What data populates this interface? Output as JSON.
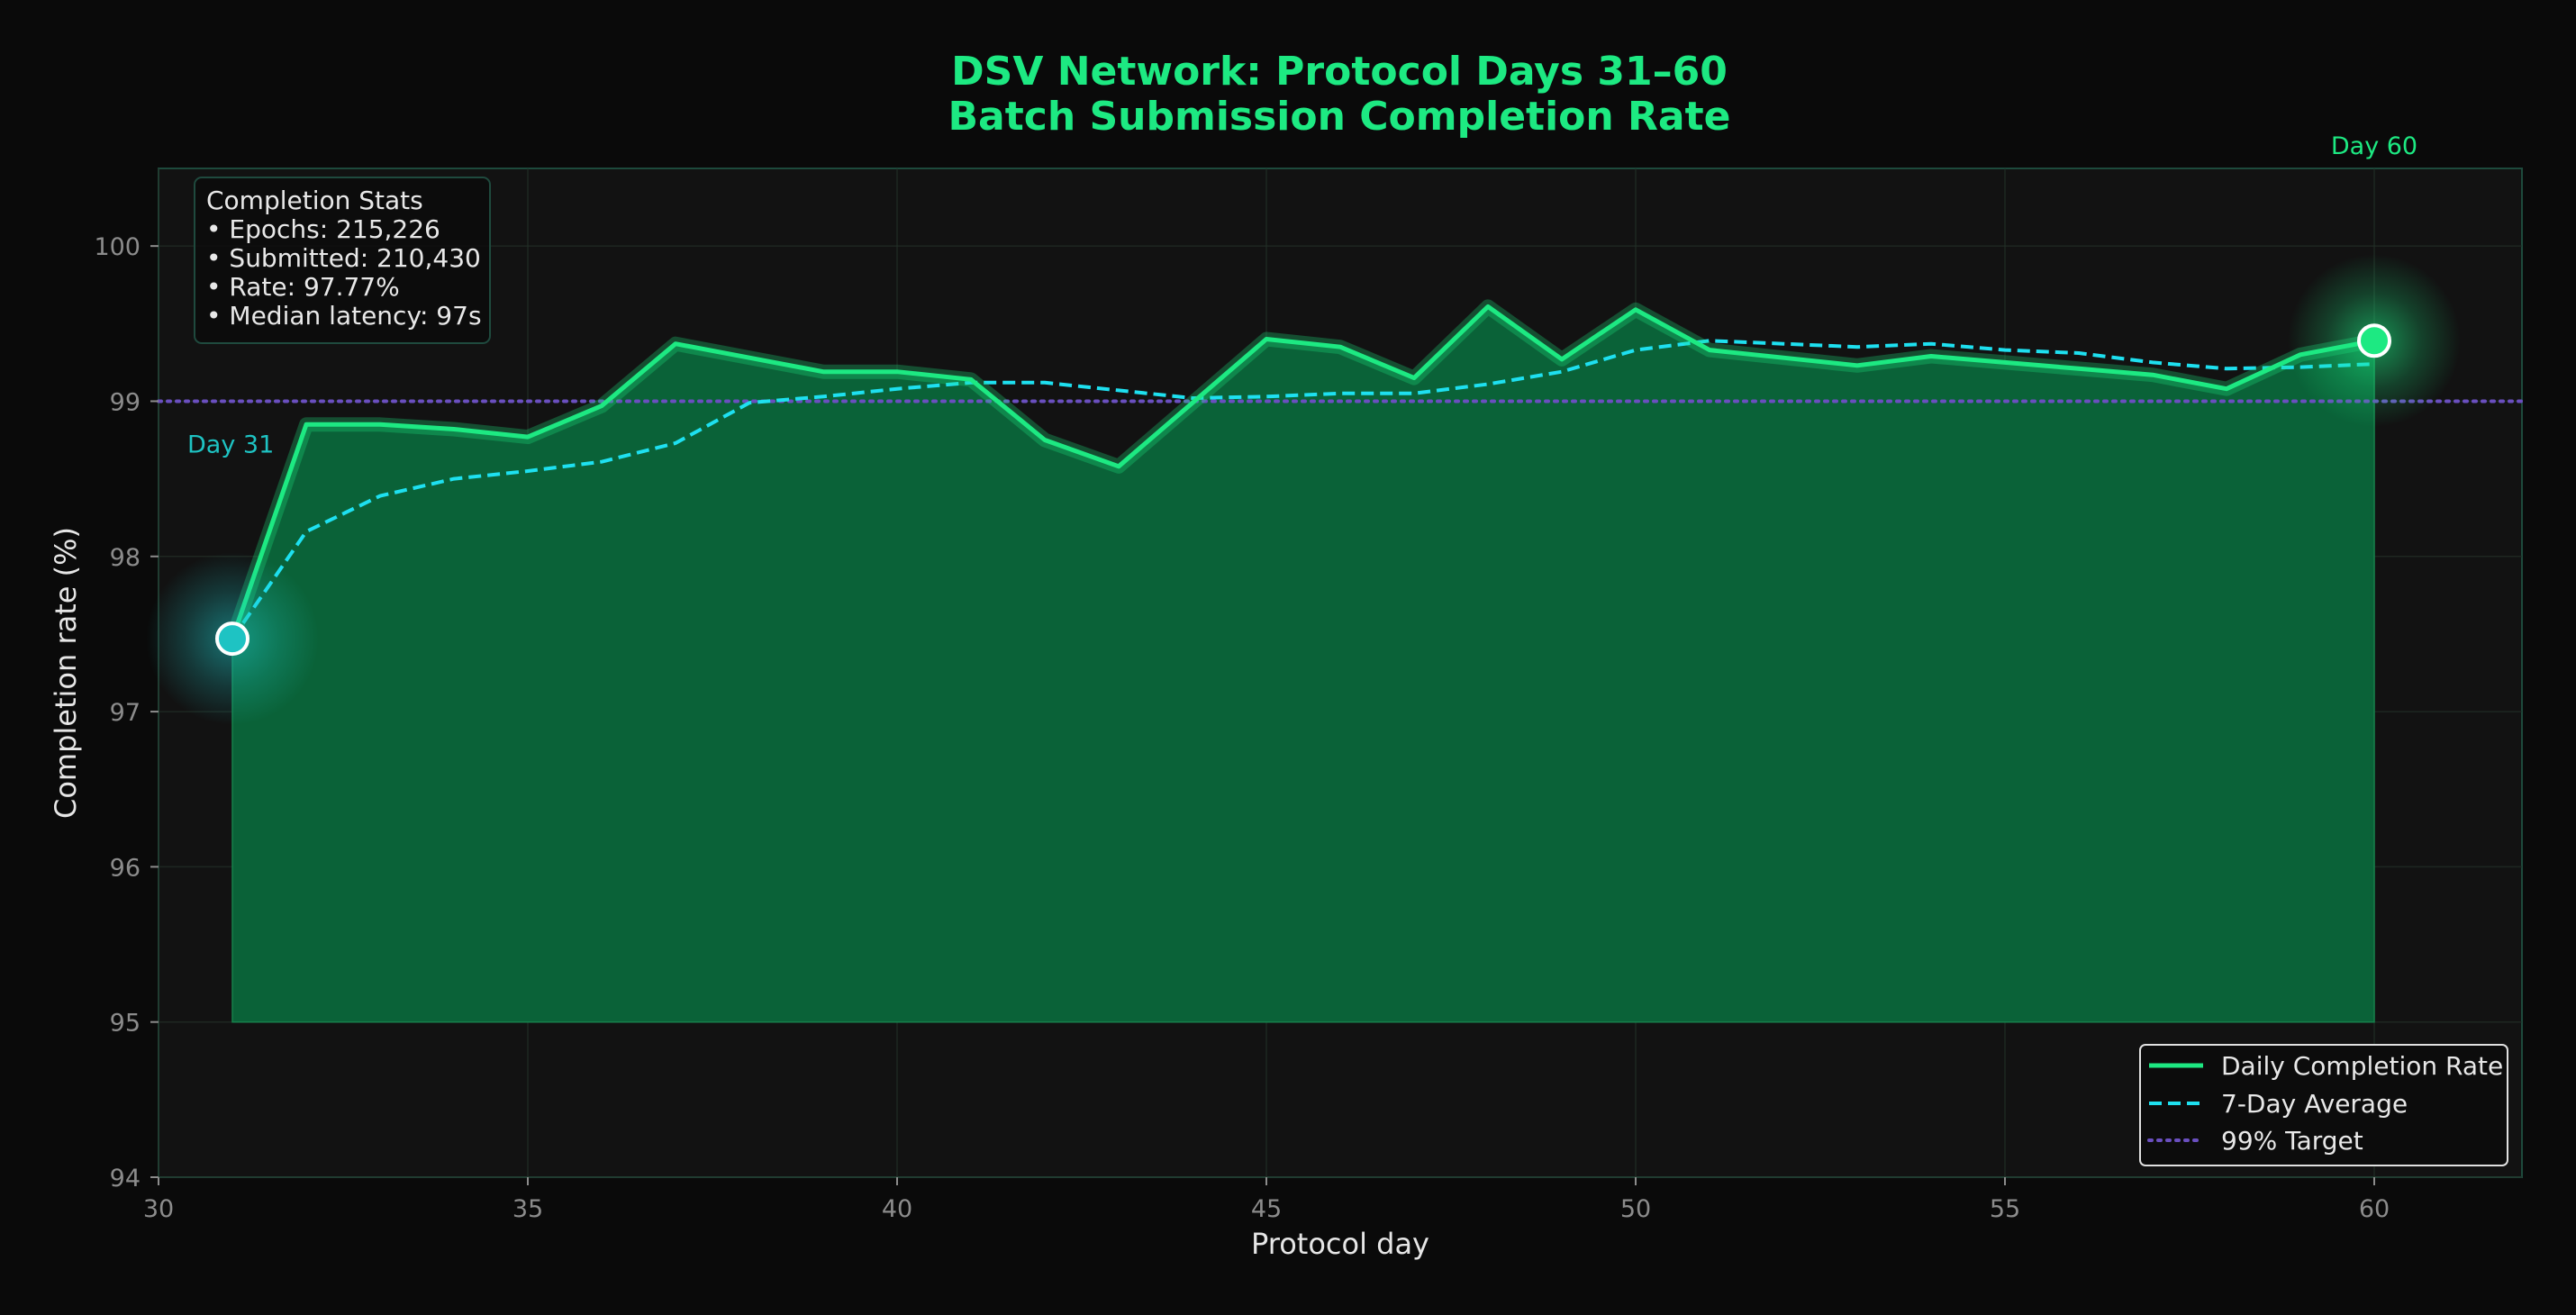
{
  "chart_data": {
    "type": "line",
    "title": [
      "DSV Network: Protocol Days 31–60",
      "Batch Submission Completion Rate"
    ],
    "xlabel": "Protocol day",
    "ylabel": "Completion rate (%)",
    "xlim": [
      30,
      62
    ],
    "ylim": [
      94,
      100.5
    ],
    "xticks": [
      30,
      35,
      40,
      45,
      50,
      55,
      60
    ],
    "yticks": [
      94,
      95,
      96,
      97,
      98,
      99,
      100
    ],
    "grid": true,
    "fill_baseline": 95,
    "target": 99,
    "series": [
      {
        "name": "Daily Completion Rate",
        "style": "solid-glow",
        "color": "#1de982",
        "x": [
          31,
          32,
          33,
          34,
          35,
          36,
          37,
          38,
          39,
          40,
          41,
          42,
          43,
          44,
          45,
          46,
          47,
          48,
          49,
          50,
          51,
          52,
          53,
          54,
          55,
          56,
          57,
          58,
          59,
          60
        ],
        "y": [
          97.47,
          98.85,
          98.85,
          98.82,
          98.77,
          98.97,
          99.37,
          99.28,
          99.19,
          99.19,
          99.14,
          98.75,
          98.58,
          98.99,
          99.4,
          99.35,
          99.15,
          99.61,
          99.27,
          99.59,
          99.33,
          99.28,
          99.23,
          99.29,
          99.25,
          99.21,
          99.17,
          99.08,
          99.3,
          99.39
        ]
      },
      {
        "name": "7-Day Average",
        "style": "dashed",
        "color": "#1ee0f0",
        "x": [
          31,
          32,
          33,
          34,
          35,
          36,
          37,
          38,
          39,
          40,
          41,
          42,
          43,
          44,
          45,
          46,
          47,
          48,
          49,
          50,
          51,
          52,
          53,
          54,
          55,
          56,
          57,
          58,
          59,
          60
        ],
        "y": [
          97.47,
          98.16,
          98.39,
          98.5,
          98.55,
          98.61,
          98.73,
          98.99,
          99.03,
          99.08,
          99.12,
          99.12,
          99.07,
          99.02,
          99.03,
          99.05,
          99.05,
          99.11,
          99.19,
          99.33,
          99.39,
          99.37,
          99.35,
          99.37,
          99.33,
          99.31,
          99.25,
          99.21,
          99.22,
          99.24
        ]
      },
      {
        "name": "99% Target",
        "style": "dotted",
        "color": "#6a4fbf",
        "y_const": 99
      }
    ],
    "stats_box": {
      "title": "Completion Stats",
      "lines": [
        "• Epochs: 215,226",
        "• Submitted: 210,430",
        "• Rate: 97.77%",
        "• Median latency: 97s"
      ]
    },
    "annotations": [
      {
        "label": "Day 31",
        "x": 31,
        "y": 97.47,
        "color": "#1ec3c3"
      },
      {
        "label": "Day 60",
        "x": 60,
        "y": 99.39,
        "color": "#1de982"
      }
    ],
    "legend_position": "bottom-right"
  }
}
